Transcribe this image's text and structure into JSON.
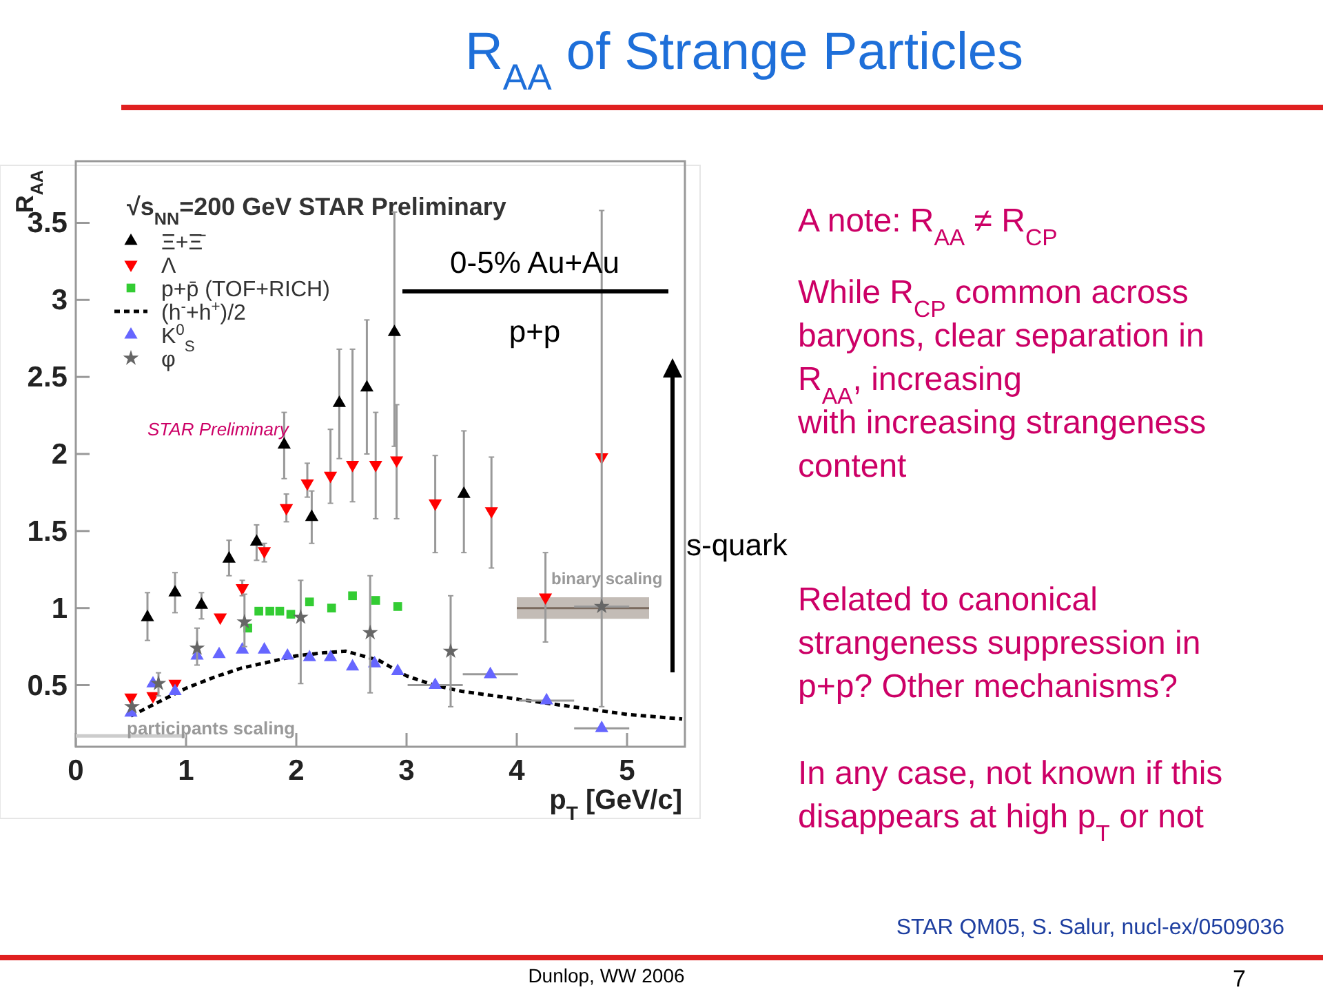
{
  "chart_data": {
    "type": "scatter",
    "title": "R$_{AA}$ of Strange Particles",
    "subtitle": "√s$_{NN}$=200 GeV STAR Preliminary",
    "xlabel": "p$_{T}$ [GeV/c]",
    "ylabel": "R$_{AA}$",
    "xlim": [
      0,
      5.5
    ],
    "ylim": [
      0.1,
      3.9
    ],
    "xticks": [
      0,
      1,
      2,
      3,
      4,
      5
    ],
    "yticks": [
      0.5,
      1,
      1.5,
      2,
      2.5,
      3,
      3.5
    ],
    "grid": false,
    "legend": "top left",
    "series": [
      {
        "name": "Ξ+Ξ̄",
        "color": "#000000",
        "marker": "triangle",
        "x": [
          0.65,
          0.9,
          1.14,
          1.39,
          1.64,
          1.89,
          2.14,
          2.39,
          2.64,
          2.89,
          3.52
        ],
        "values": [
          0.94,
          1.1,
          1.02,
          1.32,
          1.43,
          2.06,
          1.59,
          2.33,
          2.43,
          2.79,
          1.74
        ],
        "errors": [
          [
            0.79,
            1.1
          ],
          [
            0.97,
            1.23
          ],
          [
            0.93,
            1.1
          ],
          [
            1.21,
            1.44
          ],
          [
            1.31,
            1.54
          ],
          [
            1.84,
            2.27
          ],
          [
            1.42,
            1.76
          ],
          [
            1.97,
            2.68
          ],
          [
            2.0,
            2.87
          ],
          [
            2.05,
            3.57
          ],
          [
            1.36,
            2.15
          ]
        ]
      },
      {
        "name": "Λ",
        "color": "#ff0000",
        "marker": "triangle-down",
        "x": [
          0.5,
          0.7,
          0.9,
          1.31,
          1.51,
          1.71,
          1.91,
          2.1,
          2.31,
          2.51,
          2.72,
          2.91,
          3.26,
          3.77,
          4.26,
          4.77
        ],
        "values": [
          0.42,
          0.43,
          0.51,
          0.94,
          1.13,
          1.37,
          1.65,
          1.81,
          1.86,
          1.93,
          1.93,
          1.96,
          1.68,
          1.63,
          1.07,
          1.98
        ],
        "errors": [
          null,
          null,
          null,
          null,
          [
            1.08,
            1.18
          ],
          [
            1.3,
            1.42
          ],
          [
            1.56,
            1.74
          ],
          [
            1.72,
            1.94
          ],
          [
            1.68,
            2.16
          ],
          [
            1.69,
            2.68
          ],
          [
            1.58,
            2.27
          ],
          [
            1.58,
            2.32
          ],
          [
            1.36,
            1.99
          ],
          [
            1.26,
            1.98
          ],
          [
            0.78,
            1.36
          ],
          null
        ]
      },
      {
        "name": "p+p̄  (TOF+RICH)",
        "color": "#33cc33",
        "marker": "square",
        "x": [
          1.56,
          1.66,
          1.76,
          1.85,
          1.95,
          2.12,
          2.32,
          2.51,
          2.72,
          2.92
        ],
        "values": [
          0.87,
          0.98,
          0.98,
          0.98,
          0.96,
          1.04,
          1.0,
          1.08,
          1.05,
          1.01
        ]
      },
      {
        "name": "(h$^{-}$+h$^{+}$)/2",
        "type": "line",
        "color": "#000000",
        "marker": "none",
        "line_style": "dashed",
        "x": [
          0.5,
          0.75,
          1.0,
          1.25,
          1.5,
          1.75,
          2.0,
          2.25,
          2.45,
          2.75,
          3.0,
          3.25,
          3.5,
          4.0,
          4.5,
          5.0,
          5.5
        ],
        "values": [
          0.3,
          0.39,
          0.48,
          0.55,
          0.61,
          0.65,
          0.69,
          0.71,
          0.72,
          0.66,
          0.56,
          0.5,
          0.46,
          0.41,
          0.36,
          0.31,
          0.28
        ]
      },
      {
        "name": "K$^{0}$$_{S}$",
        "color": "#6666ff",
        "marker": "triangle",
        "x": [
          0.5,
          0.7,
          0.9,
          1.1,
          1.3,
          1.51,
          1.71,
          1.92,
          2.12,
          2.31,
          2.51,
          2.71,
          2.92,
          3.26,
          3.76,
          4.27,
          4.77
        ],
        "values": [
          0.32,
          0.51,
          0.46,
          0.69,
          0.7,
          0.73,
          0.73,
          0.69,
          0.68,
          0.68,
          0.62,
          0.64,
          0.59,
          0.5,
          0.57,
          0.4,
          0.22
        ],
        "xerrors": [
          null,
          null,
          null,
          null,
          null,
          null,
          null,
          null,
          null,
          null,
          null,
          null,
          null,
          0.25,
          0.25,
          0.25,
          0.25
        ]
      },
      {
        "name": "φ",
        "color": "#666666",
        "marker": "star",
        "x": [
          0.51,
          0.75,
          1.1,
          1.53,
          2.04,
          2.67,
          3.4,
          4.77
        ],
        "values": [
          0.36,
          0.51,
          0.74,
          0.91,
          0.94,
          0.84,
          0.72,
          1.01
        ],
        "errors": [
          null,
          [
            0.43,
            0.58
          ],
          [
            0.63,
            0.87
          ],
          [
            0.75,
            1.09
          ],
          [
            0.51,
            1.18
          ],
          [
            0.45,
            1.21
          ],
          [
            0.36,
            1.08
          ],
          [
            0.36,
            3.58
          ]
        ],
        "xerrors": [
          null,
          null,
          null,
          null,
          null,
          null,
          null,
          0.25
        ]
      },
      {
        "type": "line",
        "color": "#7a6a5e",
        "marker": "none",
        "x": [
          4.0,
          5.2
        ],
        "values": [
          1.0,
          1.0
        ],
        "lower": [
          0.93,
          0.93
        ],
        "upper": [
          1.07,
          1.07
        ]
      },
      {
        "type": "line",
        "color": "#cccccc",
        "line_style": "solid",
        "x": [
          0.0,
          1.0
        ],
        "values": [
          0.17,
          0.17
        ]
      }
    ],
    "annotations": [
      "STAR Preliminary",
      "0-5% Au+Au",
      "p+p",
      "s-quark",
      "A note: R$_{AA}$ ≠ R$_{CP}$",
      "While R$_{CP}$ common across\nbaryons, clear separation in\nR$_{AA}$, increasing\nwith increasing strangeness\ncontent",
      "Related to canonical\nstrangeness suppression in\np+p?  Other mechanisms?\n\nIn any case, not known if this\ndisappears at high p$_{T}$ or not",
      "STAR QM05, S. Salur, nucl-ex/0509036",
      "Dunlop, WW 2006",
      "7",
      "binary scaling",
      "participants scaling"
    ]
  }
}
